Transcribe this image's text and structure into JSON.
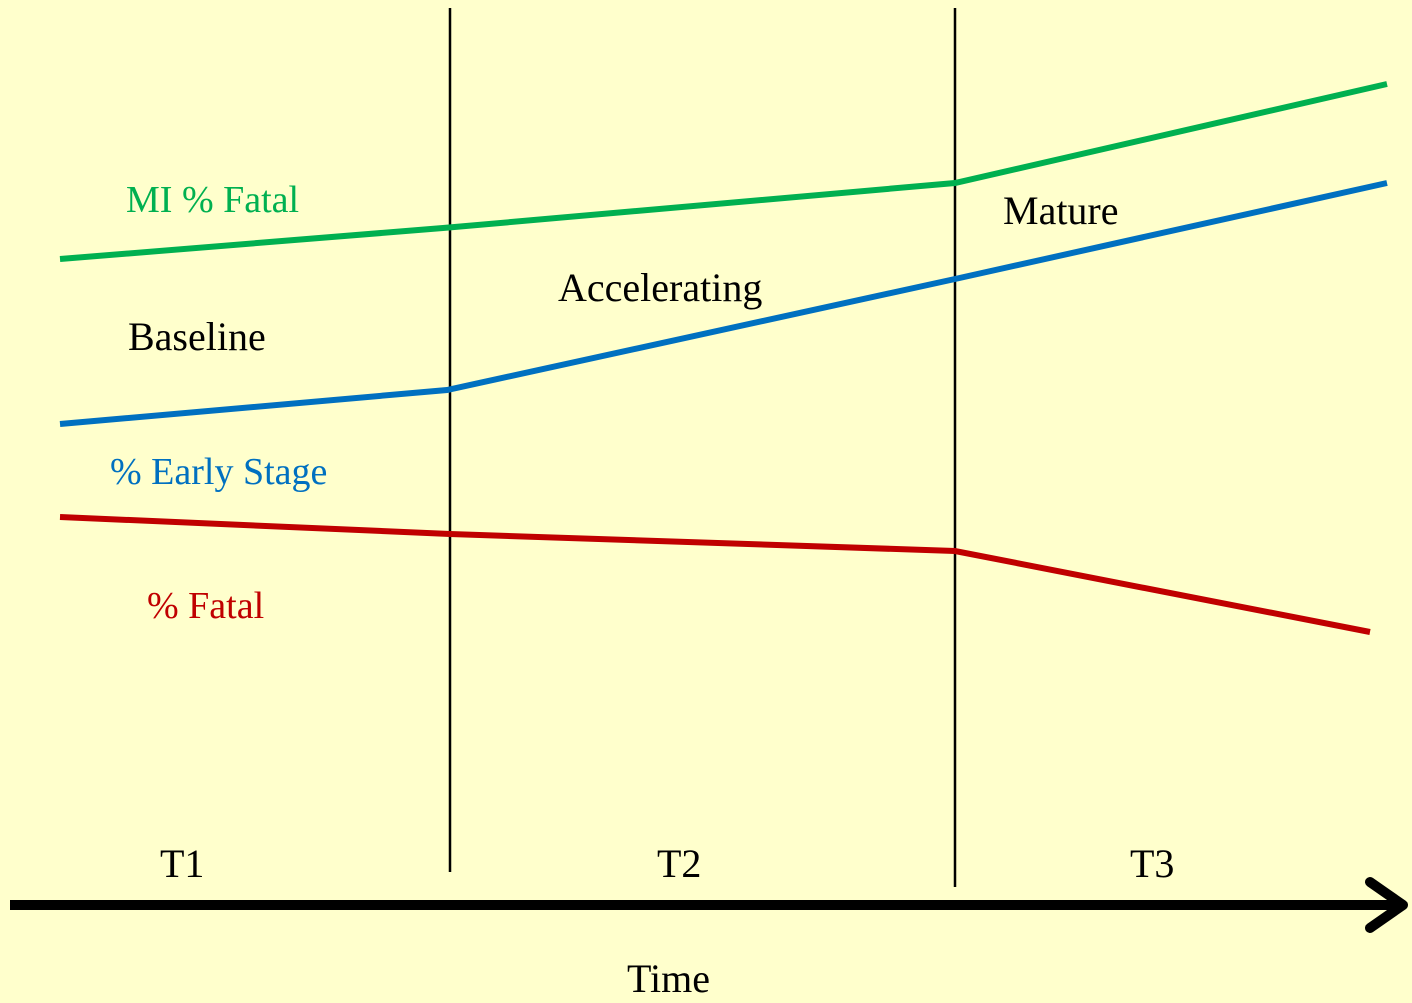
{
  "labels": {
    "mi_fatal": "MI % Fatal",
    "baseline": "Baseline",
    "accelerating": "Accelerating",
    "mature": "Mature",
    "early_stage": "% Early Stage",
    "fatal": "% Fatal"
  },
  "periods": [
    "T1",
    "T2",
    "T3"
  ],
  "axis_label": "Time"
}
